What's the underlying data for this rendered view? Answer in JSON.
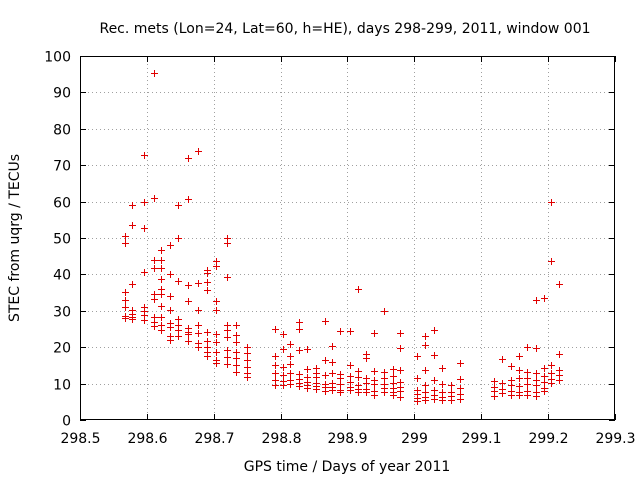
{
  "chart_data": {
    "type": "scatter",
    "title": "Rec. mets (Lon=24, Lat=60, h=HE), days 298-299, 2011, window 001",
    "xlabel": "GPS time / Days of year 2011",
    "ylabel": "STEC from uqrg / TECUs",
    "xlim": [
      298.5,
      299.3
    ],
    "ylim": [
      0,
      100
    ],
    "xticks": [
      "298.5",
      "298.6",
      "298.7",
      "298.8",
      "298.9",
      "299",
      "299.1",
      "299.2",
      "299.3"
    ],
    "yticks": [
      "0",
      "10",
      "20",
      "30",
      "40",
      "50",
      "60",
      "70",
      "80",
      "90",
      "100"
    ],
    "grid": true,
    "marker": "+",
    "color": "#e00000",
    "points": [
      [
        298.567,
        50.6
      ],
      [
        298.567,
        48.5
      ],
      [
        298.567,
        35.3
      ],
      [
        298.567,
        33.1
      ],
      [
        298.567,
        31.0
      ],
      [
        298.567,
        28.5
      ],
      [
        298.567,
        28.1
      ],
      [
        298.578,
        59.0
      ],
      [
        298.578,
        53.6
      ],
      [
        298.578,
        37.5
      ],
      [
        298.578,
        30.2
      ],
      [
        298.578,
        29.2
      ],
      [
        298.578,
        28.4
      ],
      [
        298.578,
        27.7
      ],
      [
        298.596,
        72.8
      ],
      [
        298.596,
        60.0
      ],
      [
        298.596,
        52.8
      ],
      [
        298.596,
        40.6
      ],
      [
        298.596,
        31.1
      ],
      [
        298.596,
        29.9
      ],
      [
        298.596,
        28.8
      ],
      [
        298.596,
        27.6
      ],
      [
        298.61,
        95.3
      ],
      [
        298.61,
        61.1
      ],
      [
        298.61,
        44.0
      ],
      [
        298.61,
        41.7
      ],
      [
        298.61,
        34.6
      ],
      [
        298.61,
        33.3
      ],
      [
        298.61,
        28.2
      ],
      [
        298.61,
        26.8
      ],
      [
        298.61,
        25.7
      ],
      [
        298.621,
        46.7
      ],
      [
        298.621,
        44.0
      ],
      [
        298.621,
        41.7
      ],
      [
        298.621,
        38.8
      ],
      [
        298.621,
        36.1
      ],
      [
        298.621,
        34.7
      ],
      [
        298.621,
        31.2
      ],
      [
        298.621,
        28.2
      ],
      [
        298.621,
        26.0
      ],
      [
        298.621,
        24.6
      ],
      [
        298.634,
        48.1
      ],
      [
        298.634,
        40.2
      ],
      [
        298.634,
        34.0
      ],
      [
        298.634,
        30.2
      ],
      [
        298.634,
        26.7
      ],
      [
        298.634,
        25.6
      ],
      [
        298.634,
        23.0
      ],
      [
        298.634,
        22.0
      ],
      [
        298.647,
        59.0
      ],
      [
        298.647,
        50.0
      ],
      [
        298.647,
        38.1
      ],
      [
        298.647,
        27.7
      ],
      [
        298.647,
        26.1
      ],
      [
        298.647,
        24.6
      ],
      [
        298.647,
        23.1
      ],
      [
        298.661,
        72.0
      ],
      [
        298.661,
        60.6
      ],
      [
        298.661,
        37.1
      ],
      [
        298.661,
        32.7
      ],
      [
        298.661,
        25.4
      ],
      [
        298.661,
        24.2
      ],
      [
        298.661,
        23.7
      ],
      [
        298.661,
        21.6
      ],
      [
        298.676,
        73.8
      ],
      [
        298.676,
        37.7
      ],
      [
        298.676,
        30.3
      ],
      [
        298.676,
        26.1
      ],
      [
        298.676,
        24.0
      ],
      [
        298.676,
        21.2
      ],
      [
        298.676,
        20.0
      ],
      [
        298.69,
        41.2
      ],
      [
        298.69,
        40.3
      ],
      [
        298.69,
        37.8
      ],
      [
        298.69,
        35.6
      ],
      [
        298.69,
        24.1
      ],
      [
        298.69,
        21.8
      ],
      [
        298.69,
        20.0
      ],
      [
        298.69,
        18.8
      ],
      [
        298.69,
        17.6
      ],
      [
        298.704,
        43.8
      ],
      [
        298.704,
        42.3
      ],
      [
        298.704,
        32.8
      ],
      [
        298.704,
        30.1
      ],
      [
        298.704,
        23.5
      ],
      [
        298.704,
        21.5
      ],
      [
        298.704,
        18.6
      ],
      [
        298.704,
        16.5
      ],
      [
        298.704,
        15.7
      ],
      [
        298.72,
        50.1
      ],
      [
        298.72,
        48.5
      ],
      [
        298.72,
        39.2
      ],
      [
        298.72,
        26.1
      ],
      [
        298.72,
        24.6
      ],
      [
        298.72,
        22.7
      ],
      [
        298.72,
        19.3
      ],
      [
        298.72,
        17.2
      ],
      [
        298.72,
        15.4
      ],
      [
        298.734,
        26.0
      ],
      [
        298.734,
        23.4
      ],
      [
        298.734,
        21.3
      ],
      [
        298.734,
        18.8
      ],
      [
        298.734,
        17.1
      ],
      [
        298.734,
        15.0
      ],
      [
        298.734,
        13.2
      ],
      [
        298.749,
        20.0
      ],
      [
        298.749,
        18.5
      ],
      [
        298.749,
        16.6
      ],
      [
        298.749,
        14.5
      ],
      [
        298.749,
        13.0
      ],
      [
        298.749,
        11.8
      ],
      [
        298.791,
        25.0
      ],
      [
        298.791,
        17.6
      ],
      [
        298.791,
        15.0
      ],
      [
        298.791,
        12.8
      ],
      [
        298.791,
        11.0
      ],
      [
        298.791,
        9.7
      ],
      [
        298.803,
        23.6
      ],
      [
        298.803,
        19.6
      ],
      [
        298.803,
        14.5
      ],
      [
        298.803,
        12.4
      ],
      [
        298.803,
        10.6
      ],
      [
        298.803,
        9.5
      ],
      [
        298.814,
        21.0
      ],
      [
        298.814,
        17.7
      ],
      [
        298.814,
        15.3
      ],
      [
        298.814,
        13.0
      ],
      [
        298.814,
        11.0
      ],
      [
        298.814,
        10.0
      ],
      [
        298.828,
        26.9
      ],
      [
        298.828,
        25.1
      ],
      [
        298.828,
        19.3
      ],
      [
        298.828,
        12.7
      ],
      [
        298.828,
        11.3
      ],
      [
        298.828,
        10.2
      ],
      [
        298.828,
        9.3
      ],
      [
        298.84,
        19.5
      ],
      [
        298.84,
        14.1
      ],
      [
        298.84,
        11.9
      ],
      [
        298.84,
        10.4
      ],
      [
        298.84,
        9.6
      ],
      [
        298.84,
        8.8
      ],
      [
        298.853,
        14.3
      ],
      [
        298.853,
        13.0
      ],
      [
        298.853,
        11.7
      ],
      [
        298.853,
        10.1
      ],
      [
        298.853,
        9.3
      ],
      [
        298.853,
        8.6
      ],
      [
        298.866,
        27.3
      ],
      [
        298.866,
        16.5
      ],
      [
        298.866,
        12.4
      ],
      [
        298.866,
        10.0
      ],
      [
        298.866,
        9.0
      ],
      [
        298.866,
        8.0
      ],
      [
        298.877,
        20.3
      ],
      [
        298.877,
        15.8
      ],
      [
        298.877,
        13.0
      ],
      [
        298.877,
        10.1
      ],
      [
        298.877,
        9.1
      ],
      [
        298.877,
        8.3
      ],
      [
        298.889,
        24.5
      ],
      [
        298.889,
        12.6
      ],
      [
        298.889,
        11.5
      ],
      [
        298.889,
        10.0
      ],
      [
        298.889,
        8.3
      ],
      [
        298.889,
        7.7
      ],
      [
        298.904,
        24.4
      ],
      [
        298.904,
        15.1
      ],
      [
        298.904,
        12.0
      ],
      [
        298.904,
        10.5
      ],
      [
        298.904,
        9.2
      ],
      [
        298.904,
        8.3
      ],
      [
        298.916,
        36.0
      ],
      [
        298.916,
        13.5
      ],
      [
        298.916,
        11.8
      ],
      [
        298.916,
        9.7
      ],
      [
        298.916,
        8.5
      ],
      [
        298.916,
        7.6
      ],
      [
        298.928,
        18.0
      ],
      [
        298.928,
        17.1
      ],
      [
        298.928,
        11.6
      ],
      [
        298.928,
        10.1
      ],
      [
        298.928,
        8.5
      ],
      [
        298.928,
        7.6
      ],
      [
        298.94,
        24.0
      ],
      [
        298.94,
        13.4
      ],
      [
        298.94,
        11.0
      ],
      [
        298.94,
        9.9
      ],
      [
        298.94,
        8.0
      ],
      [
        298.94,
        6.9
      ],
      [
        298.954,
        30.0
      ],
      [
        298.954,
        13.2
      ],
      [
        298.954,
        11.6
      ],
      [
        298.954,
        9.9
      ],
      [
        298.954,
        8.8
      ],
      [
        298.954,
        7.8
      ],
      [
        298.968,
        14.1
      ],
      [
        298.968,
        12.0
      ],
      [
        298.968,
        10.1
      ],
      [
        298.968,
        8.8
      ],
      [
        298.968,
        7.7
      ],
      [
        298.968,
        6.9
      ],
      [
        298.979,
        24.0
      ],
      [
        298.979,
        19.8
      ],
      [
        298.979,
        13.6
      ],
      [
        298.979,
        10.5
      ],
      [
        298.979,
        9.0
      ],
      [
        298.979,
        7.9
      ],
      [
        298.979,
        6.2
      ],
      [
        299.004,
        17.6
      ],
      [
        299.004,
        11.5
      ],
      [
        299.004,
        8.3
      ],
      [
        299.004,
        7.1
      ],
      [
        299.004,
        6.0
      ],
      [
        299.004,
        5.3
      ],
      [
        299.016,
        23.0
      ],
      [
        299.016,
        20.5
      ],
      [
        299.016,
        13.7
      ],
      [
        299.016,
        9.6
      ],
      [
        299.016,
        7.6
      ],
      [
        299.016,
        6.3
      ],
      [
        299.016,
        5.4
      ],
      [
        299.029,
        24.7
      ],
      [
        299.029,
        17.9
      ],
      [
        299.029,
        11.0
      ],
      [
        299.029,
        8.2
      ],
      [
        299.029,
        6.8
      ],
      [
        299.029,
        5.7
      ],
      [
        299.042,
        14.3
      ],
      [
        299.042,
        10.0
      ],
      [
        299.042,
        7.6
      ],
      [
        299.042,
        6.3
      ],
      [
        299.042,
        5.5
      ],
      [
        299.055,
        9.5
      ],
      [
        299.055,
        7.8
      ],
      [
        299.055,
        6.6
      ],
      [
        299.055,
        5.6
      ],
      [
        299.068,
        15.7
      ],
      [
        299.068,
        11.2
      ],
      [
        299.068,
        8.8
      ],
      [
        299.068,
        7.1
      ],
      [
        299.068,
        5.7
      ],
      [
        299.119,
        10.7
      ],
      [
        299.119,
        9.2
      ],
      [
        299.119,
        7.9
      ],
      [
        299.119,
        6.7
      ],
      [
        299.131,
        16.7
      ],
      [
        299.131,
        10.1
      ],
      [
        299.131,
        8.6
      ],
      [
        299.131,
        7.3
      ],
      [
        299.144,
        14.7
      ],
      [
        299.144,
        11.0
      ],
      [
        299.144,
        9.6
      ],
      [
        299.144,
        8.0
      ],
      [
        299.144,
        6.9
      ],
      [
        299.156,
        17.6
      ],
      [
        299.156,
        13.6
      ],
      [
        299.156,
        11.5
      ],
      [
        299.156,
        9.3
      ],
      [
        299.156,
        7.7
      ],
      [
        299.156,
        6.8
      ],
      [
        299.169,
        20.0
      ],
      [
        299.169,
        13.2
      ],
      [
        299.169,
        11.6
      ],
      [
        299.169,
        10.0
      ],
      [
        299.169,
        8.1
      ],
      [
        299.169,
        7.0
      ],
      [
        299.182,
        33.0
      ],
      [
        299.182,
        19.8
      ],
      [
        299.182,
        12.8
      ],
      [
        299.182,
        11.1
      ],
      [
        299.182,
        9.5
      ],
      [
        299.182,
        7.8
      ],
      [
        299.182,
        6.7
      ],
      [
        299.194,
        33.5
      ],
      [
        299.194,
        14.3
      ],
      [
        299.194,
        12.1
      ],
      [
        299.194,
        10.5
      ],
      [
        299.194,
        8.9
      ],
      [
        299.194,
        7.9
      ],
      [
        299.205,
        60.0
      ],
      [
        299.205,
        43.7
      ],
      [
        299.205,
        15.0
      ],
      [
        299.205,
        13.0
      ],
      [
        299.205,
        11.4
      ],
      [
        299.205,
        10.1
      ],
      [
        299.217,
        37.5
      ],
      [
        299.217,
        18.0
      ],
      [
        299.217,
        13.6
      ],
      [
        299.217,
        12.4
      ],
      [
        299.217,
        11.1
      ]
    ]
  }
}
